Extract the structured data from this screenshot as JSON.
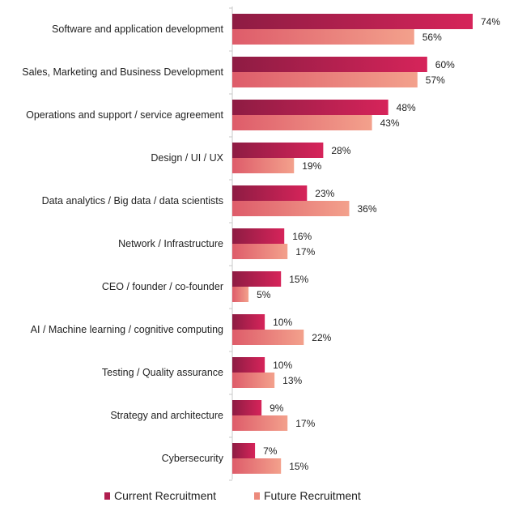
{
  "chart_data": {
    "type": "bar",
    "orientation": "horizontal",
    "categories": [
      "Software and application development",
      "Sales, Marketing and Business Development",
      "Operations and support / service agreement",
      "Design / UI / UX",
      "Data analytics / Big data / data scientists",
      "Network / Infrastructure",
      "CEO / founder / co-founder",
      "AI / Machine learning / cognitive computing",
      "Testing / Quality assurance",
      "Strategy and architecture",
      "Cybersecurity"
    ],
    "series": [
      {
        "name": "Current Recruitment",
        "values": [
          74,
          60,
          48,
          28,
          23,
          16,
          15,
          10,
          10,
          9,
          7
        ],
        "labels": [
          "74%",
          "60%",
          "48%",
          "28%",
          "23%",
          "16%",
          "15%",
          "10%",
          "10%",
          "9%",
          "7%"
        ],
        "color_dark": "#8e1c43",
        "color_light": "#d6245a"
      },
      {
        "name": "Future Recruitment",
        "values": [
          56,
          57,
          43,
          19,
          36,
          17,
          5,
          22,
          13,
          17,
          15
        ],
        "labels": [
          "56%",
          "57%",
          "43%",
          "19%",
          "36%",
          "17%",
          "5%",
          "22%",
          "13%",
          "17%",
          "15%"
        ],
        "color_dark": "#de5c6a",
        "color_light": "#f3a18c"
      }
    ],
    "title": "",
    "xlabel": "",
    "ylabel": "",
    "xlim": [
      0,
      74
    ],
    "grid": false,
    "legend": {
      "position": "bottom",
      "entries": [
        "Current Recruitment",
        "Future Recruitment"
      ],
      "colors": [
        "#b01e4f",
        "#ec8a7c"
      ]
    }
  }
}
